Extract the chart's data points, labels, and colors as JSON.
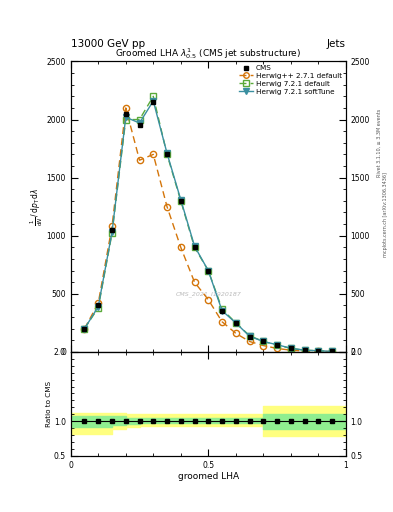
{
  "title_header_left": "13000 GeV pp",
  "title_header_right": "Jets",
  "plot_title": "Groomed LHA $\\lambda^{1}_{0.5}$ (CMS jet substructure)",
  "xlabel": "groomed LHA",
  "watermark": "CMS_2021_I1920187",
  "cms_x": [
    0.05,
    0.1,
    0.15,
    0.2,
    0.25,
    0.3,
    0.35,
    0.4,
    0.45,
    0.5,
    0.55,
    0.6,
    0.65,
    0.7,
    0.75,
    0.8,
    0.85,
    0.9,
    0.95
  ],
  "cms_y": [
    200,
    400,
    1050,
    2050,
    1950,
    2150,
    1700,
    1300,
    900,
    700,
    350,
    250,
    130,
    90,
    60,
    30,
    15,
    10,
    5
  ],
  "herwig_pp_x": [
    0.05,
    0.1,
    0.15,
    0.2,
    0.25,
    0.3,
    0.35,
    0.4,
    0.45,
    0.5,
    0.55,
    0.6,
    0.65,
    0.7,
    0.75,
    0.8,
    0.85,
    0.9,
    0.95
  ],
  "herwig_pp_y": [
    200,
    420,
    1080,
    2100,
    1650,
    1700,
    1250,
    900,
    600,
    450,
    260,
    160,
    90,
    55,
    30,
    15,
    8,
    5,
    3
  ],
  "herwig721_def_x": [
    0.05,
    0.1,
    0.15,
    0.2,
    0.25,
    0.3,
    0.35,
    0.4,
    0.45,
    0.5,
    0.55,
    0.6,
    0.65,
    0.7,
    0.75,
    0.8,
    0.85,
    0.9,
    0.95
  ],
  "herwig721_def_y": [
    200,
    380,
    1020,
    2000,
    2000,
    2200,
    1700,
    1300,
    900,
    700,
    370,
    250,
    140,
    90,
    60,
    30,
    15,
    10,
    5
  ],
  "herwig721_soft_x": [
    0.05,
    0.1,
    0.15,
    0.2,
    0.25,
    0.3,
    0.35,
    0.4,
    0.45,
    0.5,
    0.55,
    0.6,
    0.65,
    0.7,
    0.75,
    0.8,
    0.85,
    0.9,
    0.95
  ],
  "herwig721_soft_y": [
    200,
    390,
    1030,
    2020,
    1970,
    2160,
    1710,
    1310,
    910,
    700,
    355,
    250,
    135,
    90,
    62,
    32,
    15,
    10,
    5
  ],
  "ratio_x_edges": [
    0.0,
    0.05,
    0.1,
    0.15,
    0.2,
    0.25,
    0.3,
    0.35,
    0.4,
    0.45,
    0.5,
    0.6,
    0.7,
    0.8,
    0.9,
    1.0
  ],
  "band_yellow_lo": [
    0.82,
    0.82,
    0.82,
    0.88,
    0.92,
    0.93,
    0.93,
    0.93,
    0.93,
    0.93,
    0.93,
    0.93,
    0.78,
    0.78,
    0.78,
    0.78
  ],
  "band_yellow_hi": [
    1.12,
    1.12,
    1.12,
    1.12,
    1.1,
    1.1,
    1.1,
    1.1,
    1.1,
    1.1,
    1.1,
    1.1,
    1.22,
    1.22,
    1.22,
    1.22
  ],
  "band_green_lo": [
    0.91,
    0.91,
    0.91,
    0.94,
    0.96,
    0.97,
    0.97,
    0.97,
    0.97,
    0.97,
    0.97,
    0.97,
    0.88,
    0.88,
    0.88,
    0.88
  ],
  "band_green_hi": [
    1.07,
    1.07,
    1.07,
    1.07,
    1.05,
    1.05,
    1.05,
    1.05,
    1.05,
    1.05,
    1.05,
    1.05,
    1.1,
    1.1,
    1.1,
    1.1
  ],
  "ylim_main": [
    0,
    2500
  ],
  "ylim_ratio": [
    0.5,
    2.0
  ],
  "color_herwig_pp": "#D4750A",
  "color_herwig721_def": "#5AAA3A",
  "color_herwig721_soft": "#3A8FA0",
  "color_cms": "#000000",
  "yticks_main": [
    0,
    500,
    1000,
    1500,
    2000,
    2500
  ],
  "yticks_ratio": [
    0.5,
    1.0,
    2.0
  ],
  "right_label_1": "Rivet 3.1.10, ≥ 3.3M events",
  "right_label_2": "mcplots.cern.ch [arXiv:1306.3436]"
}
